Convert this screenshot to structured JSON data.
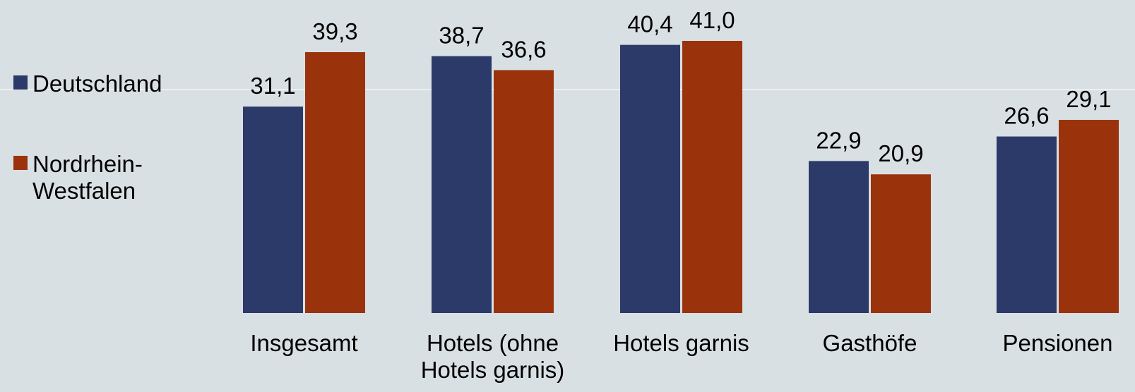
{
  "colors": {
    "background": "#d9e0e3",
    "Deutschland": "#2b3a69",
    "Nordrhein-Westfalen": "#9a330c"
  },
  "chart_data": {
    "type": "bar",
    "categories": [
      [
        "Insgesamt"
      ],
      [
        "Hotels (ohne",
        "Hotels garnis)"
      ],
      [
        "Hotels garnis"
      ],
      [
        "Gasthöfe"
      ],
      [
        "Pensionen"
      ]
    ],
    "series": [
      {
        "name": "Deutschland",
        "values": [
          31.1,
          38.7,
          40.4,
          22.9,
          26.6
        ],
        "labels": [
          "31,1",
          "38,7",
          "40,4",
          "22,9",
          "26,6"
        ]
      },
      {
        "name": "Nordrhein-Westfalen",
        "values": [
          39.3,
          36.6,
          41.0,
          20.9,
          29.1
        ],
        "labels": [
          "39,3",
          "36,6",
          "41,0",
          "20,9",
          "29,1"
        ]
      }
    ],
    "legend": {
      "position": "left",
      "entries": [
        {
          "series": "Deutschland",
          "lines": [
            "Deutschland"
          ]
        },
        {
          "series": "Nordrhein-Westfalen",
          "lines": [
            "Nordrhein-",
            "Westfalen"
          ]
        }
      ]
    },
    "ylim": [
      0,
      41.0
    ],
    "grid": false
  }
}
